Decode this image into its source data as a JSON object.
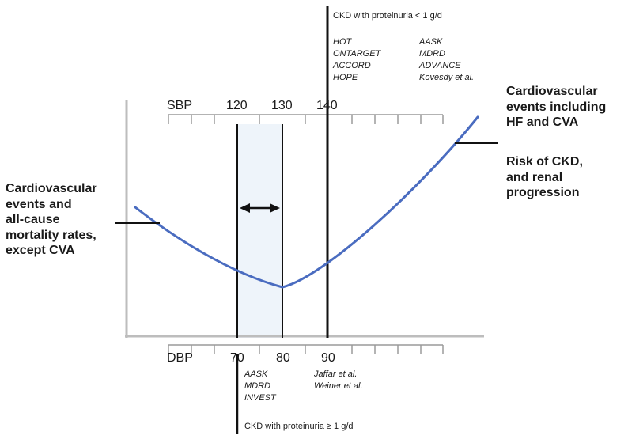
{
  "top_group": {
    "title": "CKD with proteinuria < 1 g/d",
    "studies_col1": [
      "HOT",
      "ONTARGET",
      "ACCORD",
      "HOPE"
    ],
    "studies_col2": [
      "AASK",
      "MDRD",
      "ADVANCE",
      "Kovesdy et al."
    ]
  },
  "sbp_axis": {
    "label": "SBP",
    "ticks": [
      "120",
      "130",
      "140"
    ]
  },
  "dbp_axis": {
    "label": "DBP",
    "ticks": [
      "70",
      "80",
      "90"
    ]
  },
  "bottom_group": {
    "title": "CKD with proteinuria ≥ 1 g/d",
    "studies_col1": [
      "AASK",
      "MDRD",
      "INVEST"
    ],
    "studies_col2": [
      "Jaffar et al.",
      "Weiner et al."
    ]
  },
  "left_label": [
    "Cardiovascular",
    "events and",
    "all-cause",
    "mortality rates,",
    "except CVA"
  ],
  "right_label_1": [
    "Cardiovascular",
    "events including",
    "HF and CVA"
  ],
  "right_label_2": [
    "Risk of CKD,",
    "and renal",
    "progression"
  ],
  "colors": {
    "curve": "#4a6cc0",
    "band": "#eef4fa",
    "frame": "#bdbdbd",
    "line": "#111111"
  }
}
